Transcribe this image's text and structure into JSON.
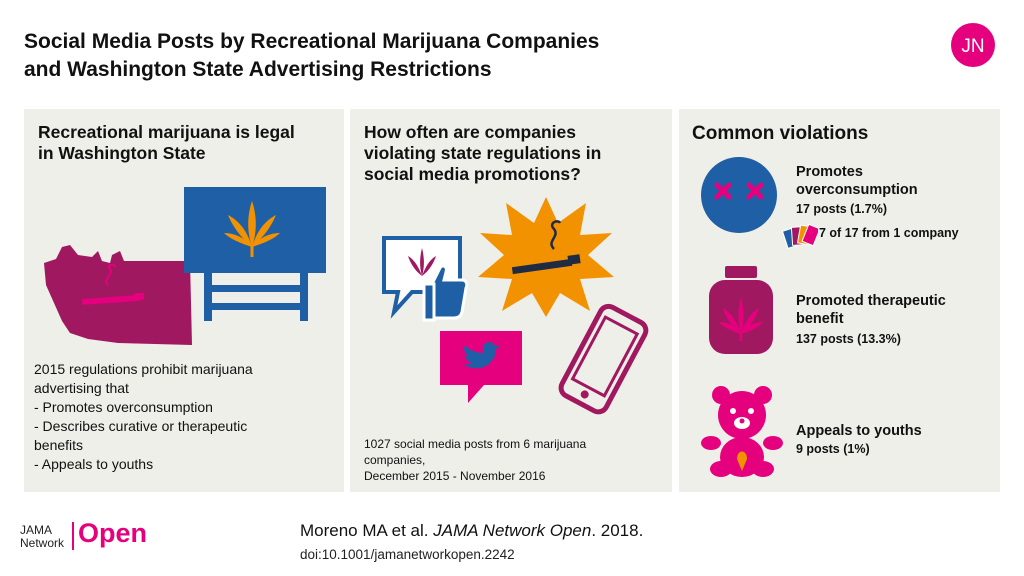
{
  "title": {
    "line1": "Social Media Posts by Recreational Marijuana Companies",
    "line2": "and Washington State Advertising Restrictions"
  },
  "logo": {
    "text": "JN",
    "color": "#e5007e"
  },
  "panel1": {
    "heading_line1": "Recreational marijuana is legal",
    "heading_line2": "in Washington State",
    "body": [
      "2015 regulations prohibit marijuana",
      "advertising that",
      "- Promotes overconsumption",
      "- Describes curative or therapeutic",
      "benefits",
      "- Appeals to youths"
    ]
  },
  "panel2": {
    "heading_line1": "How often are companies",
    "heading_line2": "violating state regulations in",
    "heading_line3": "social media promotions?",
    "footnote": [
      "1027 social media posts from 6 marijuana",
      "companies,",
      "December 2015 - November  2016"
    ]
  },
  "panel3": {
    "heading": "Common violations",
    "violations": [
      {
        "title_line1": "Promotes",
        "title_line2": "overconsumption",
        "count": "17 posts (1.7%)",
        "note": "7 of 17 from 1 company"
      },
      {
        "title_line1": "Promoted therapeutic",
        "title_line2": "benefit",
        "count": "137 posts (13.3%)"
      },
      {
        "title_line1": "Appeals to youths",
        "count": "9 posts (1%)"
      }
    ]
  },
  "footer": {
    "brand_line1": "JAMA",
    "brand_line2": "Network",
    "brand_open": "Open",
    "citation_authors": "Moreno MA et al. ",
    "citation_journal": "JAMA Network Open",
    "citation_year": ". 2018.",
    "doi": "doi:10.1001/jamanetworkopen.2242"
  },
  "colors": {
    "magenta": "#e5007e",
    "plum": "#a0185f",
    "blue": "#1f5fa6",
    "orange": "#f39200",
    "panel_bg": "#efefe9"
  },
  "icons": [
    "washington-map-icon",
    "billboard-icon",
    "thumbs-up-icon",
    "explosion-icon",
    "twitter-bubble-icon",
    "smartphone-icon",
    "dizzy-face-icon",
    "cards-icon",
    "jar-icon",
    "teddy-bear-icon"
  ]
}
